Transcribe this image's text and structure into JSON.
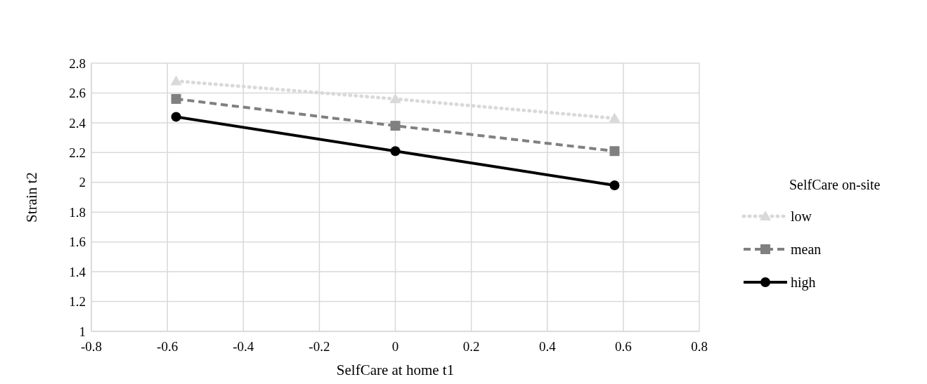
{
  "chart_data": {
    "type": "line",
    "xlabel": "SelfCare at home t1",
    "ylabel": "Strain t2",
    "legend_title": "SelfCare on-site",
    "x": [
      -0.577,
      0,
      0.577
    ],
    "series": [
      {
        "name": "low",
        "color": "#d9d9d9",
        "values": [
          2.68,
          2.56,
          2.43
        ],
        "marker": "triangle",
        "line_style": "dotted"
      },
      {
        "name": "mean",
        "color": "#808080",
        "values": [
          2.56,
          2.38,
          2.21
        ],
        "marker": "square",
        "line_style": "dashed"
      },
      {
        "name": "high",
        "color": "#000000",
        "values": [
          2.44,
          2.21,
          1.98
        ],
        "marker": "circle",
        "line_style": "solid"
      }
    ],
    "xlim": [
      -0.8,
      0.8
    ],
    "xticks": [
      -0.8,
      -0.6,
      -0.4,
      -0.2,
      0,
      0.2,
      0.4,
      0.6,
      0.8
    ],
    "ylim": [
      1,
      2.8
    ],
    "yticks": [
      1,
      1.2,
      1.4,
      1.6,
      1.8,
      2,
      2.2,
      2.4,
      2.6,
      2.8
    ],
    "grid": true,
    "legend": "right"
  }
}
